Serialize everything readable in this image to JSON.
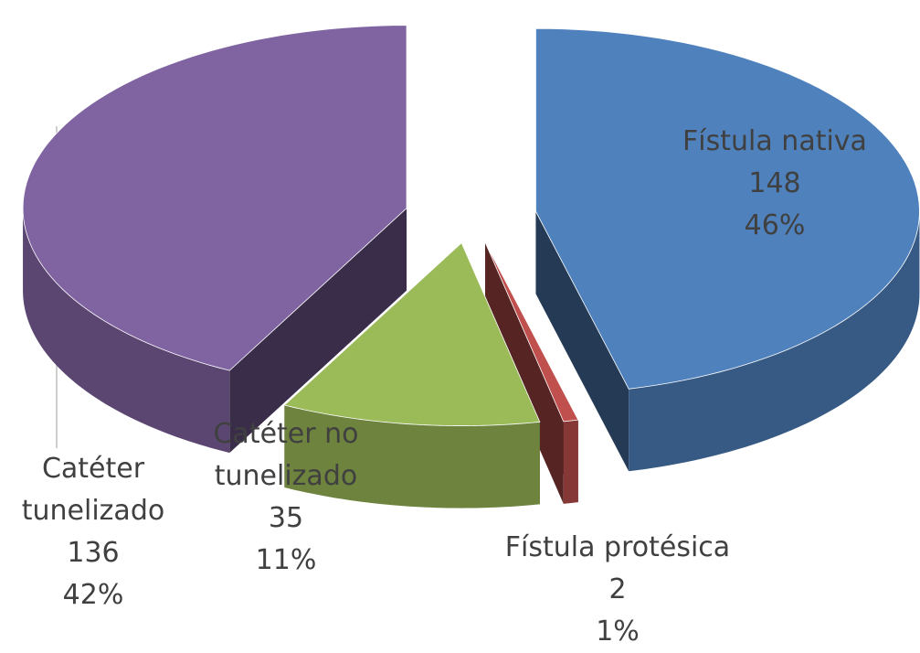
{
  "chart_data": {
    "type": "pie3d",
    "categories": [
      "Fístula nativa",
      "Fístula protésica",
      "Catéter no tunelizado",
      "Catéter tunelizado"
    ],
    "values": [
      148,
      2,
      35,
      136
    ],
    "percent_labels": [
      "46%",
      "1%",
      "11%",
      "42%"
    ],
    "colors": [
      "#4f81bd",
      "#c0504d",
      "#9bbb59",
      "#8064a2"
    ]
  }
}
